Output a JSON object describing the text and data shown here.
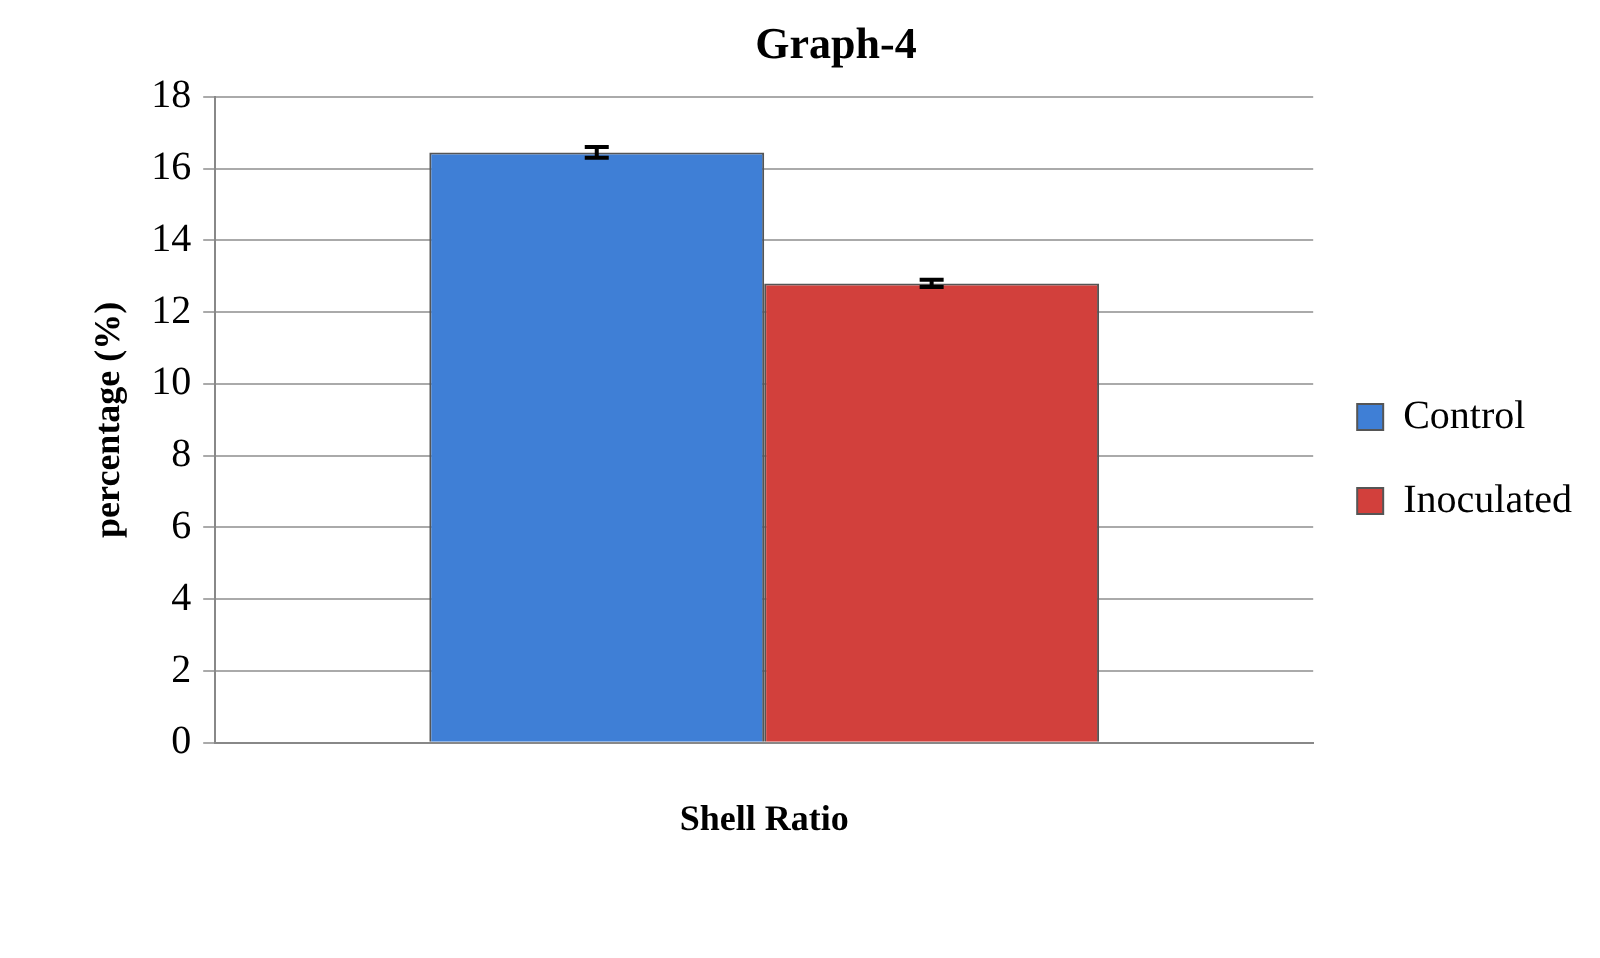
{
  "chart_data": {
    "type": "bar",
    "title": "Graph-4",
    "ylabel": "percentage (%)",
    "categories": [
      "Shell Ratio"
    ],
    "series": [
      {
        "name": "Control",
        "color": "#3f7fd6",
        "values": [
          16.45
        ],
        "errors": [
          0.15
        ]
      },
      {
        "name": "Inoculated",
        "color": "#d2403c",
        "values": [
          12.8
        ],
        "errors": [
          0.1
        ]
      }
    ],
    "ylim": [
      0,
      18
    ],
    "yticks": [
      0,
      2,
      4,
      6,
      8,
      10,
      12,
      14,
      16,
      18
    ],
    "grid": "y",
    "legend": "right"
  }
}
